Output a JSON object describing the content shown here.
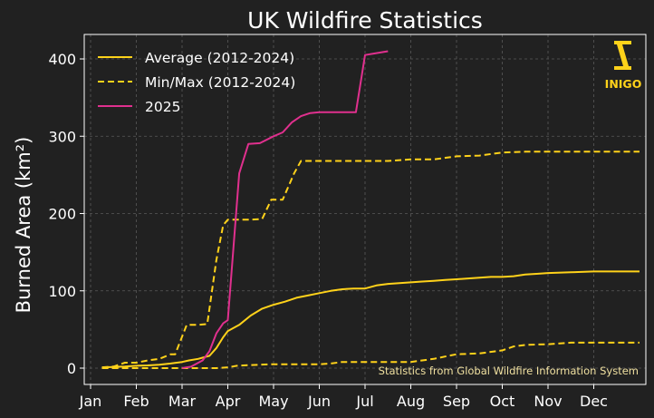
{
  "chart_data": {
    "type": "line",
    "title": "UK Wildfire Statistics",
    "ylabel": "Burned Area (km²)",
    "ylim": [
      -20,
      430
    ],
    "xlim": [
      0,
      12.3
    ],
    "x_ticks": [
      {
        "label": "Jan",
        "x": 0
      },
      {
        "label": "Feb",
        "x": 1
      },
      {
        "label": "Mar",
        "x": 2
      },
      {
        "label": "Apr",
        "x": 3
      },
      {
        "label": "May",
        "x": 4
      },
      {
        "label": "Jun",
        "x": 5
      },
      {
        "label": "Jul",
        "x": 6
      },
      {
        "label": "Aug",
        "x": 7
      },
      {
        "label": "Sep",
        "x": 8
      },
      {
        "label": "Oct",
        "x": 9
      },
      {
        "label": "Nov",
        "x": 10
      },
      {
        "label": "Dec",
        "x": 11
      }
    ],
    "y_ticks": [
      0,
      100,
      200,
      300,
      400
    ],
    "grid": true,
    "legend_position": "top-left",
    "series": [
      {
        "name": "Average (2012-2024)",
        "style": "solid",
        "color": "#ffd21a",
        "x": [
          0.25,
          0.5,
          0.75,
          1.0,
          1.25,
          1.5,
          1.75,
          2.0,
          2.15,
          2.35,
          2.6,
          2.75,
          2.9,
          3.0,
          3.25,
          3.5,
          3.75,
          4.0,
          4.25,
          4.5,
          4.75,
          5.0,
          5.25,
          5.5,
          5.75,
          6.0,
          6.25,
          6.5,
          6.75,
          7.0,
          7.25,
          7.5,
          7.75,
          8.0,
          8.25,
          8.5,
          8.75,
          9.0,
          9.25,
          9.5,
          9.75,
          10.0,
          10.5,
          11.0,
          11.5,
          12.0
        ],
        "values": [
          1,
          1.5,
          2,
          3,
          3.5,
          4.5,
          6,
          8,
          10,
          12,
          16,
          26,
          40,
          48,
          56,
          68,
          77,
          82,
          86,
          91,
          94,
          97,
          100,
          102,
          103,
          103,
          107,
          109,
          110,
          111,
          112,
          113,
          114,
          115,
          116,
          117,
          118,
          118,
          119,
          121,
          122,
          123,
          124,
          125,
          125,
          125
        ]
      },
      {
        "name": "Min/Max (2012-2024)",
        "style": "dashed",
        "color": "#ffd21a",
        "x": [
          0.25,
          0.5,
          0.75,
          1.0,
          1.25,
          1.5,
          1.75,
          1.85,
          2.1,
          2.35,
          2.55,
          2.75,
          2.9,
          3.0,
          3.25,
          3.5,
          3.75,
          3.95,
          4.2,
          4.45,
          4.6,
          4.75,
          5.0,
          5.5,
          6.0,
          6.5,
          7.0,
          7.5,
          8.0,
          8.5,
          9.0,
          9.5,
          10.0,
          10.5,
          11.0,
          11.5,
          12.0
        ],
        "values": [
          1,
          2,
          7,
          7,
          10,
          12,
          18,
          18,
          56,
          56,
          57,
          140,
          185,
          192,
          192,
          192,
          193,
          218,
          218,
          252,
          268,
          268,
          268,
          268,
          268,
          268,
          270,
          270,
          274,
          275,
          279,
          280,
          280,
          280,
          280,
          280,
          280
        ]
      },
      {
        "name": "Min/Max (2012-2024)",
        "style": "dashed",
        "color": "#ffd21a",
        "legend": false,
        "x": [
          0.25,
          1.0,
          2.0,
          2.5,
          2.75,
          3.0,
          3.2,
          3.5,
          4.0,
          4.5,
          5.0,
          5.25,
          5.5,
          6.0,
          6.5,
          6.75,
          7.0,
          7.25,
          7.5,
          7.75,
          8.0,
          8.5,
          9.0,
          9.25,
          9.5,
          10.0,
          10.5,
          11.0,
          12.0
        ],
        "values": [
          0,
          0,
          0,
          0,
          0,
          1,
          3,
          4,
          5,
          5,
          5,
          6,
          8,
          8,
          8,
          8,
          8,
          10,
          12,
          15,
          18,
          19,
          23,
          28,
          30,
          31,
          33,
          33,
          33
        ]
      },
      {
        "name": "2025",
        "style": "solid",
        "color": "#e0308e",
        "x": [
          2.0,
          2.2,
          2.45,
          2.6,
          2.75,
          2.9,
          3.0,
          3.25,
          3.45,
          3.7,
          4.0,
          4.2,
          4.4,
          4.6,
          4.8,
          5.0,
          5.5,
          5.8,
          6.0,
          6.2,
          6.5
        ],
        "values": [
          0,
          2,
          10,
          22,
          45,
          58,
          62,
          252,
          290,
          291,
          300,
          305,
          318,
          326,
          330,
          331,
          331,
          331,
          405,
          407,
          410
        ]
      }
    ],
    "annotations": [
      "Statistics from Global Wildfire Information System"
    ]
  },
  "logo": {
    "text": "INIGO",
    "color": "#ffd21a"
  },
  "colors": {
    "background": "#212121",
    "grid": "#5a5a5a",
    "axis": "#ffffff"
  }
}
